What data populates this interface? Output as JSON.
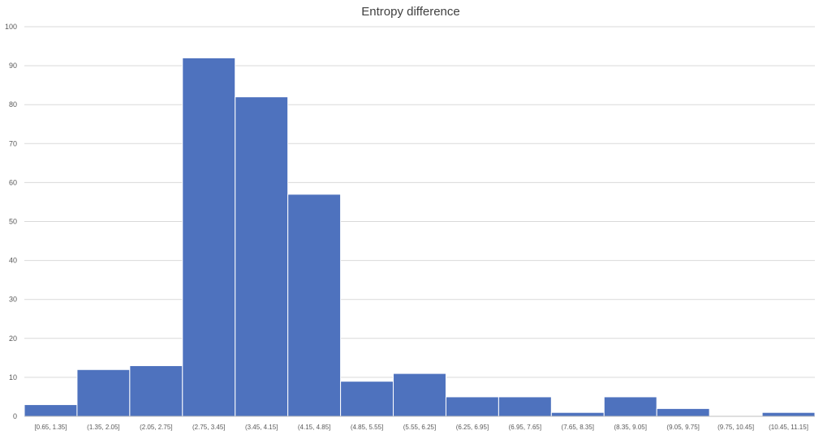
{
  "chart_data": {
    "type": "bar",
    "title": "Entropy difference",
    "xlabel": "",
    "ylabel": "",
    "ylim": [
      0,
      100
    ],
    "yticks": [
      0,
      10,
      20,
      30,
      40,
      50,
      60,
      70,
      80,
      90,
      100
    ],
    "grid": true,
    "legend": "none",
    "bar_color": "#4e72be",
    "categories": [
      "[0.65, 1.35]",
      "(1.35, 2.05]",
      "(2.05, 2.75]",
      "(2.75, 3.45]",
      "(3.45, 4.15]",
      "(4.15, 4.85]",
      "(4.85, 5.55]",
      "(5.55, 6.25]",
      "(6.25, 6.95]",
      "(6.95, 7.65]",
      "(7.65, 8.35]",
      "(8.35, 9.05]",
      "(9.05, 9.75]",
      "(9.75, 10.45]",
      "(10.45, 11.15]"
    ],
    "values": [
      3,
      12,
      13,
      92,
      82,
      57,
      9,
      11,
      5,
      5,
      1,
      5,
      2,
      0,
      1
    ]
  }
}
